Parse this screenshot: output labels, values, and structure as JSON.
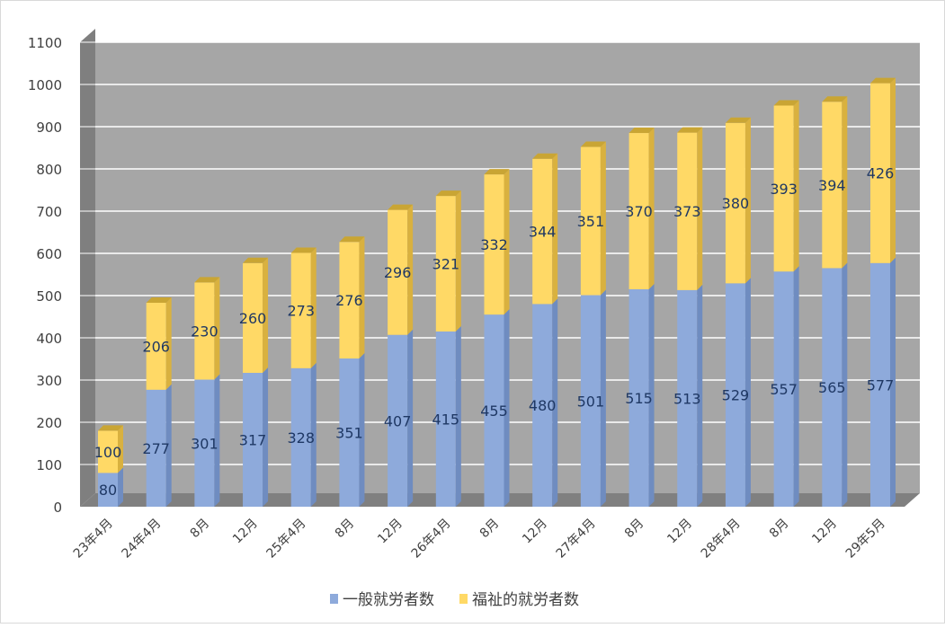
{
  "chart_data": {
    "type": "bar",
    "stacked": true,
    "three_d": true,
    "categories": [
      "23年4月",
      "24年4月",
      "8月",
      "12月",
      "25年4月",
      "8月",
      "12月",
      "26年4月",
      "8月",
      "12月",
      "27年4月",
      "8月",
      "12月",
      "28年4月",
      "8月",
      "12月",
      "29年5月"
    ],
    "series": [
      {
        "name": "一般就労者数",
        "color": "#8eaadb",
        "values": [
          80,
          277,
          301,
          317,
          328,
          351,
          407,
          415,
          455,
          480,
          501,
          515,
          513,
          529,
          557,
          565,
          577
        ]
      },
      {
        "name": "福祉的就労者数",
        "color": "#ffd966",
        "values": [
          100,
          206,
          230,
          260,
          273,
          276,
          296,
          321,
          332,
          344,
          351,
          370,
          373,
          380,
          393,
          394,
          426
        ]
      }
    ],
    "ylim": [
      0,
      1100
    ],
    "yticks": [
      0,
      100,
      200,
      300,
      400,
      500,
      600,
      700,
      800,
      900,
      1000,
      1100
    ],
    "grid": true,
    "legend": "bottom",
    "wall_color": "#a6a6a6",
    "label_color": "#1f3864"
  }
}
